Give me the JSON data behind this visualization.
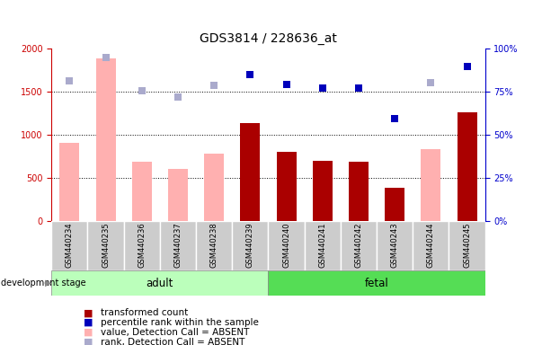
{
  "title": "GDS3814 / 228636_at",
  "samples": [
    "GSM440234",
    "GSM440235",
    "GSM440236",
    "GSM440237",
    "GSM440238",
    "GSM440239",
    "GSM440240",
    "GSM440241",
    "GSM440242",
    "GSM440243",
    "GSM440244",
    "GSM440245"
  ],
  "value_absent": [
    900,
    1880,
    690,
    600,
    780,
    null,
    null,
    null,
    null,
    null,
    830,
    null
  ],
  "value_present": [
    null,
    null,
    null,
    null,
    null,
    1130,
    800,
    700,
    680,
    380,
    null,
    1260
  ],
  "rank_absent_scatter": [
    1620,
    1890,
    1510,
    1430,
    1570,
    null,
    null,
    null,
    null,
    null,
    1600,
    null
  ],
  "rank_present_scatter": [
    null,
    null,
    null,
    null,
    null,
    1700,
    1580,
    1540,
    1540,
    1190,
    null,
    1790
  ],
  "ylim_left": [
    0,
    2000
  ],
  "ylim_right": [
    0,
    100
  ],
  "yticks_left": [
    0,
    500,
    1000,
    1500,
    2000
  ],
  "yticks_right": [
    0,
    25,
    50,
    75,
    100
  ],
  "ytick_labels_right": [
    "0%",
    "25%",
    "50%",
    "75%",
    "100%"
  ],
  "color_dark_red": "#aa0000",
  "color_dark_blue": "#0000bb",
  "color_light_pink": "#ffb0b0",
  "color_light_blue": "#aaaacc",
  "color_adult_bg": "#bbffbb",
  "color_fetal_bg": "#55dd55",
  "color_sample_bg": "#cccccc",
  "left_axis_color": "#cc0000",
  "right_axis_color": "#0000cc"
}
